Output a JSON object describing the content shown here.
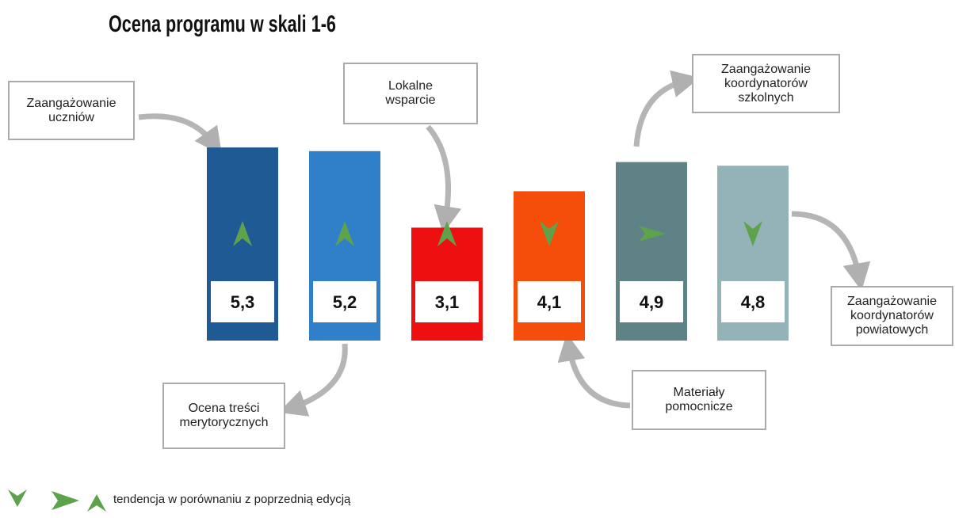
{
  "chart_data": {
    "type": "bar",
    "title": "Ocena programu w skali 1-6",
    "categories": [
      "Zaangażowanie uczniów",
      "Ocena treści merytorycznych",
      "Lokalne wsparcie",
      "Materiały pomocnicze",
      "Zaangażowanie koordynatorów szkolnych",
      "Zaangażowanie koordynatorów powiatowych"
    ],
    "values": [
      5.3,
      5.2,
      3.1,
      4.1,
      4.9,
      4.8
    ],
    "value_labels": [
      "5,3",
      "5,2",
      "3,1",
      "4,1",
      "4,9",
      "4,8"
    ],
    "colors": [
      "#1f5a94",
      "#2f80c8",
      "#ee1010",
      "#f54d0a",
      "#5f8286",
      "#93b3b8"
    ],
    "trend": [
      "up",
      "up",
      "up",
      "down",
      "right",
      "down"
    ],
    "trend_color": "#5fa24c",
    "ylim": [
      0,
      6
    ],
    "legend_text": "tendencja w porównaniu z poprzednią edycją"
  }
}
